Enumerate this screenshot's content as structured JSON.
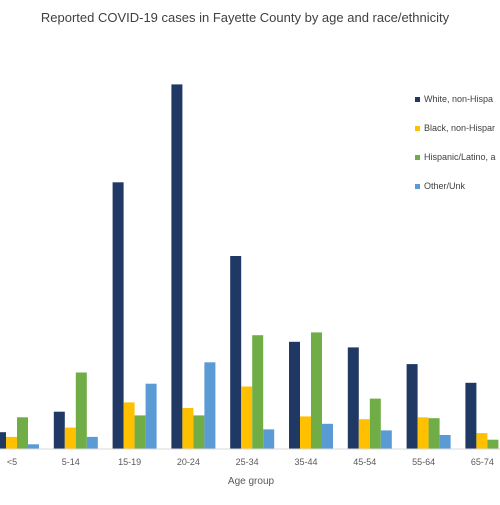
{
  "chart_data": {
    "type": "bar",
    "title": "Reported COVID-19 cases in Fayette County by age and race/ethnicity",
    "xlabel": "Age group",
    "ylabel": "",
    "categories": [
      "<5",
      "5-14",
      "15-19",
      "20-24",
      "25-34",
      "35-44",
      "45-54",
      "55-64",
      "65-74"
    ],
    "ylim": [
      0,
      400
    ],
    "grid": false,
    "legend_position": "right",
    "series": [
      {
        "name": "White, non-Hispa",
        "color": "#203864",
        "values": [
          18,
          40,
          286,
          391,
          207,
          115,
          109,
          91,
          71
        ]
      },
      {
        "name": "Black, non-Hispar",
        "color": "#FFC000",
        "values": [
          13,
          23,
          50,
          44,
          67,
          35,
          32,
          34,
          17
        ]
      },
      {
        "name": "Hispanic/Latino, a",
        "color": "#70AD47",
        "values": [
          34,
          82,
          36,
          36,
          122,
          125,
          54,
          33,
          10
        ]
      },
      {
        "name": "Other/Unk",
        "color": "#5B9BD5",
        "values": [
          5,
          13,
          70,
          93,
          21,
          27,
          20,
          15,
          0
        ]
      }
    ]
  }
}
